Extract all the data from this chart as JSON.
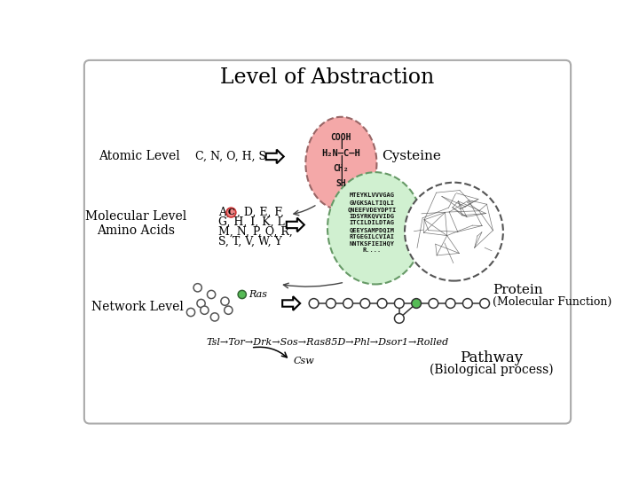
{
  "title": "Level of Abstraction",
  "atomic_level_label": "Atomic Level",
  "atomic_atoms": "C, N, O, H, S",
  "cysteine_label": "Cysteine",
  "cysteine_circle_color": "#f4a8a8",
  "cysteine_circle_edge": "#996666",
  "molecular_level_label": "Molecular Level",
  "amino_acids_label": "Amino Acids",
  "protein_seq_circle_color": "#d0f0d0",
  "protein_seq_circle_edge": "#669966",
  "protein_seq_text": "MTEYKLVVVGAG\nGVGKSALTIQLI\nQNEEFVDEYDPTI\nIDSYRKQVVIDG\nITCILDILDTAG\nQEEYSAMPDQIM\nRTGEGILCVIAI\nNNTKSFIEIHQY\nR....",
  "protein_label": "Protein",
  "protein_sublabel": "(Molecular Function)",
  "network_level_label": "Network Level",
  "ras_label": "Ras",
  "pathway_text": "Tsl→Tor→Drk→Sos→Ras85D→Phl→Dsor1→Rolled",
  "pathway_csw": "Csw",
  "pathway_label": "Pathway",
  "pathway_sublabel": "(Biological process)"
}
